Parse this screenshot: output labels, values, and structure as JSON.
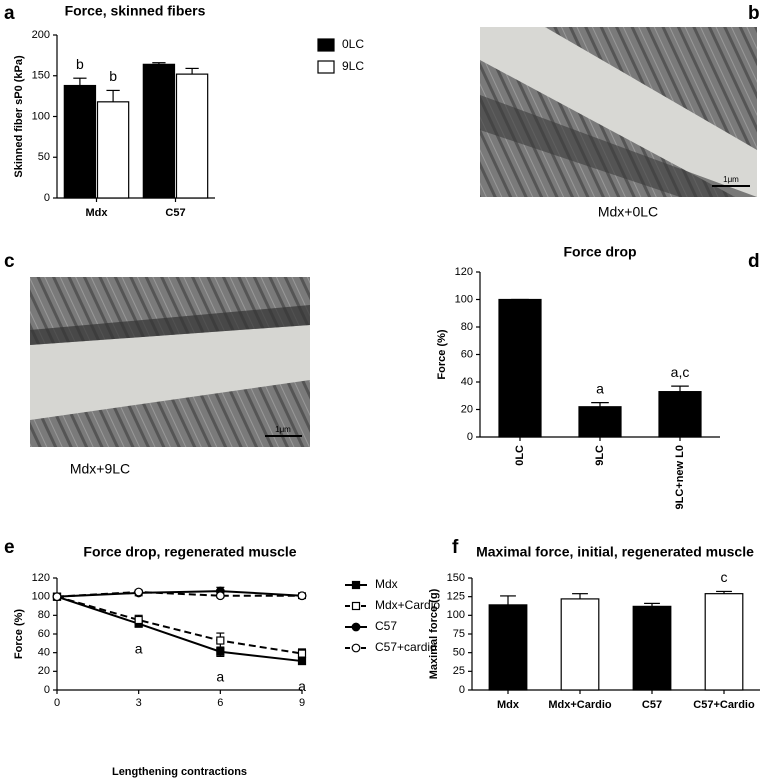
{
  "chart_data": [
    {
      "type": "bar",
      "panel": "a",
      "title": "Force, skinned fibers",
      "ylabel": "Skinned fiber sP0 (kPa)",
      "categories": [
        "Mdx",
        "C57"
      ],
      "series": [
        {
          "name": "0LC",
          "color": "#000000",
          "values": [
            138,
            164
          ],
          "errors": [
            9,
            2
          ],
          "annotations": [
            "b",
            null
          ]
        },
        {
          "name": "9LC",
          "color": "#ffffff",
          "values": [
            118,
            152
          ],
          "errors": [
            14,
            7
          ],
          "annotations": [
            "b",
            null
          ]
        }
      ],
      "ylim": [
        0,
        200
      ],
      "yticks": [
        0,
        50,
        100,
        150,
        200
      ]
    },
    {
      "type": "bar",
      "panel": "d",
      "title": "Force drop",
      "ylabel": "Force (%)",
      "categories": [
        "0LC",
        "9LC",
        "9LC+new L0"
      ],
      "values": [
        100,
        22,
        33
      ],
      "errors": [
        0,
        3,
        4
      ],
      "annotations": [
        null,
        "a",
        "a,c"
      ],
      "color": "#000000",
      "xtick_rotation": 90,
      "ylim": [
        0,
        120
      ],
      "yticks": [
        0,
        20,
        40,
        60,
        80,
        100,
        120
      ]
    },
    {
      "type": "line",
      "panel": "e",
      "title": "Force drop, regenerated muscle",
      "ylabel": "Force (%)",
      "xlabel": "Lengthening contractions",
      "x": [
        0,
        3,
        6,
        9
      ],
      "series": [
        {
          "name": "Mdx",
          "color": "#000000",
          "marker": "square",
          "filled": true,
          "dashed": false,
          "values": [
            100,
            71,
            41,
            31
          ],
          "errors": [
            0,
            3,
            5,
            3
          ],
          "annotations": [
            null,
            "a",
            "a",
            "a"
          ]
        },
        {
          "name": "Mdx+Cardio",
          "color": "#000000",
          "marker": "square",
          "filled": false,
          "dashed": true,
          "values": [
            100,
            75,
            53,
            39
          ],
          "errors": [
            0,
            5,
            8,
            5
          ]
        },
        {
          "name": "C57",
          "color": "#000000",
          "marker": "circle",
          "filled": true,
          "dashed": false,
          "values": [
            100,
            104,
            106,
            101
          ],
          "errors": [
            0,
            3,
            4,
            3
          ]
        },
        {
          "name": "C57+cardio",
          "color": "#000000",
          "marker": "circle",
          "filled": false,
          "dashed": true,
          "values": [
            100,
            105,
            101,
            101
          ],
          "errors": [
            0,
            2,
            2,
            2
          ]
        }
      ],
      "xlim": [
        0,
        9
      ],
      "xticks": [
        0,
        3,
        6,
        9
      ],
      "ylim": [
        0,
        120
      ],
      "yticks": [
        0,
        20,
        40,
        60,
        80,
        100,
        120
      ]
    },
    {
      "type": "bar",
      "panel": "f",
      "title": "Maximal force, initial, regenerated muscle",
      "ylabel": "Maximal force (g)",
      "categories": [
        "Mdx",
        "Mdx+Cardio",
        "C57",
        "C57+Cardio"
      ],
      "values": [
        114,
        122,
        112,
        129
      ],
      "errors": [
        12,
        7,
        4,
        3
      ],
      "annotations": [
        null,
        null,
        null,
        "c"
      ],
      "colors": [
        "#000000",
        "#ffffff",
        "#000000",
        "#ffffff"
      ],
      "ylim": [
        0,
        150
      ],
      "yticks": [
        0,
        25,
        50,
        75,
        100,
        125,
        150
      ]
    }
  ],
  "images": [
    {
      "panel": "b",
      "caption": "Mdx+0LC",
      "scale": "1μm"
    },
    {
      "panel": "c",
      "caption": "Mdx+9LC",
      "scale": "1μm"
    }
  ]
}
